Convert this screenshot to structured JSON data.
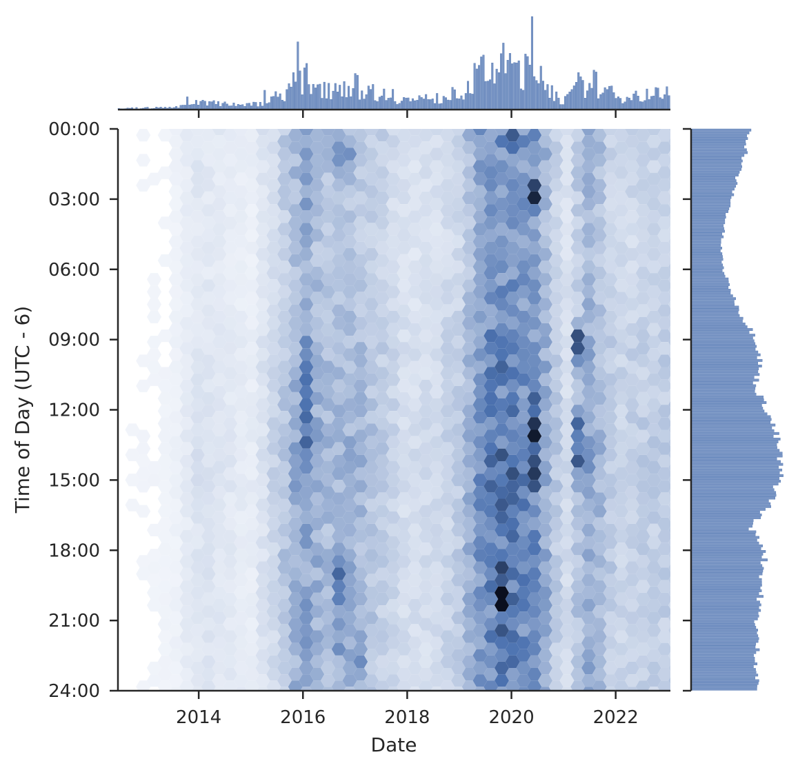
{
  "chart_data": {
    "type": "hexbin",
    "kind": "jointplot",
    "xlabel": "Date",
    "ylabel": "Time of Day (UTC - 6)",
    "x_ticks": [
      "2014",
      "2016",
      "2018",
      "2020",
      "2022"
    ],
    "x_tick_values": [
      2014.0,
      2016.0,
      2018.0,
      2020.0,
      2022.0
    ],
    "xlim": [
      2012.45,
      2023.05
    ],
    "y_ticks": [
      "00:00",
      "03:00",
      "06:00",
      "09:00",
      "12:00",
      "15:00",
      "18:00",
      "21:00",
      "24:00"
    ],
    "y_tick_values": [
      0,
      3,
      6,
      9,
      12,
      15,
      18,
      21,
      24
    ],
    "ylim": [
      0,
      24
    ],
    "y_inverted": true,
    "color": "#4c72b0",
    "colormap": [
      "#f7f9fd",
      "#4c72b0",
      "#0a0f1f"
    ],
    "density_by_year": {
      "x": [
        2012.5,
        2013.0,
        2013.5,
        2014.0,
        2014.5,
        2015.0,
        2015.5,
        2016.0,
        2016.5,
        2017.0,
        2017.5,
        2018.0,
        2018.5,
        2019.0,
        2019.5,
        2020.0,
        2020.5,
        2021.0,
        2021.5,
        2022.0,
        2022.5,
        2023.0
      ],
      "values": [
        0.02,
        0.03,
        0.04,
        0.15,
        0.12,
        0.08,
        0.25,
        0.6,
        0.42,
        0.45,
        0.3,
        0.18,
        0.2,
        0.3,
        0.75,
        0.85,
        0.7,
        0.15,
        0.55,
        0.25,
        0.28,
        0.3
      ]
    },
    "density_by_hour": {
      "x": [
        0,
        1,
        2,
        3,
        4,
        5,
        6,
        7,
        8,
        9,
        10,
        11,
        12,
        13,
        14,
        15,
        16,
        17,
        18,
        19,
        20,
        21,
        22,
        23,
        24
      ],
      "values": [
        0.7,
        0.65,
        0.55,
        0.48,
        0.4,
        0.35,
        0.38,
        0.48,
        0.6,
        0.78,
        0.82,
        0.76,
        0.9,
        1.0,
        1.05,
        1.05,
        0.95,
        0.7,
        0.88,
        0.85,
        0.82,
        0.78,
        0.78,
        0.78,
        0.78
      ]
    },
    "hotspots": [
      {
        "x": 2019.95,
        "y": 0.4,
        "w": 0.12,
        "h": 0.6,
        "level": 0.95
      },
      {
        "x": 2020.4,
        "y": 2.8,
        "w": 0.12,
        "h": 1.2,
        "level": 0.9
      },
      {
        "x": 2020.4,
        "y": 13.5,
        "w": 0.2,
        "h": 3.0,
        "level": 1.0
      },
      {
        "x": 2019.9,
        "y": 14.5,
        "w": 0.18,
        "h": 2.5,
        "level": 0.85
      },
      {
        "x": 2019.85,
        "y": 20.0,
        "w": 0.2,
        "h": 2.5,
        "level": 0.95
      },
      {
        "x": 2019.95,
        "y": 23.5,
        "w": 0.1,
        "h": 0.7,
        "level": 0.9
      },
      {
        "x": 2021.3,
        "y": 9.3,
        "w": 0.15,
        "h": 1.3,
        "level": 0.85
      },
      {
        "x": 2021.3,
        "y": 13.5,
        "w": 0.12,
        "h": 2.0,
        "level": 0.75
      },
      {
        "x": 2016.1,
        "y": 13.0,
        "w": 0.18,
        "h": 9.0,
        "level": 0.6
      },
      {
        "x": 2016.1,
        "y": 3.0,
        "w": 0.15,
        "h": 5.0,
        "level": 0.5
      },
      {
        "x": 2016.7,
        "y": 19.5,
        "w": 0.3,
        "h": 5.0,
        "level": 0.55
      },
      {
        "x": 2017.0,
        "y": 22.5,
        "w": 0.2,
        "h": 2.0,
        "level": 0.55
      },
      {
        "x": 2016.8,
        "y": 1.0,
        "w": 0.4,
        "h": 1.5,
        "level": 0.45
      }
    ]
  }
}
